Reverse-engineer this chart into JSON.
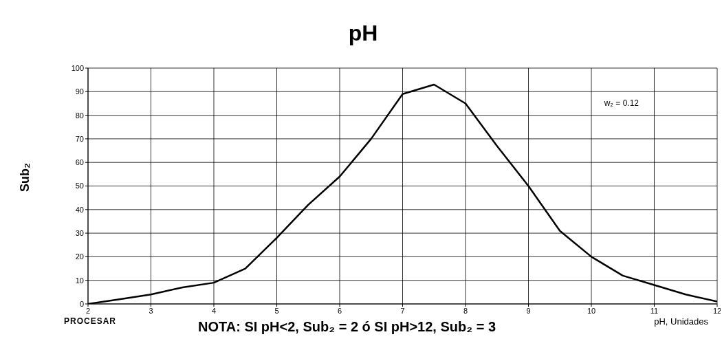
{
  "chart_data": {
    "type": "line",
    "title": "pH",
    "xlabel": "pH, Unidades",
    "ylabel": "Sub₂",
    "x": [
      2,
      2.5,
      3,
      3.5,
      4,
      4.5,
      5,
      5.5,
      6,
      6.5,
      7,
      7.5,
      8,
      8.5,
      9,
      9.5,
      10,
      10.5,
      11,
      11.5,
      12
    ],
    "series": [
      {
        "color": "#000000",
        "values": [
          0,
          2,
          4,
          7,
          9,
          15,
          28,
          42,
          54,
          70,
          89,
          93,
          85,
          67,
          50,
          31,
          20,
          12,
          8,
          4,
          1
        ]
      }
    ],
    "xlim": [
      2,
      12
    ],
    "xticks": [
      2,
      3,
      4,
      5,
      6,
      7,
      8,
      9,
      10,
      11,
      12
    ],
    "ylim": [
      0,
      100
    ],
    "yticks": [
      0,
      10,
      20,
      30,
      40,
      50,
      60,
      70,
      80,
      90,
      100
    ],
    "grid": true,
    "marker": "none",
    "line_style": "solid",
    "annotations": [
      "w₂ = 0.12",
      "PROCESAR",
      "NOTA: SI pH<2, Sub₂ = 2 ó SI pH>12, Sub₂ = 3"
    ]
  }
}
